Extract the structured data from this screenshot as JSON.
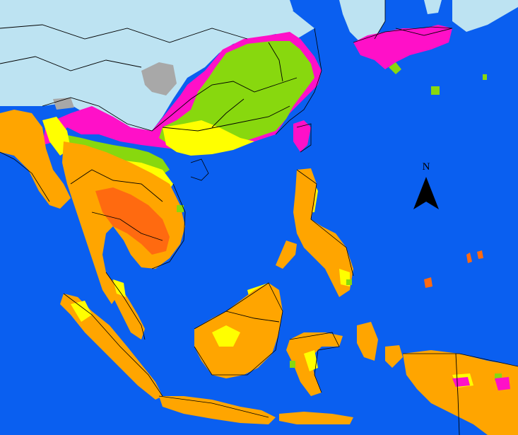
{
  "map": {
    "north_label": "N",
    "colors": {
      "ocean": "#0a5ff0",
      "land_outside": "#bde3f2",
      "no_data": "#a8a8a8",
      "magenta": "#ff10c8",
      "green": "#88d80e",
      "yellow": "#ffff00",
      "orange": "#ffa500",
      "dark_orange": "#ff6a10",
      "border": "#000000"
    },
    "icons": [
      "north-arrow-icon"
    ]
  }
}
